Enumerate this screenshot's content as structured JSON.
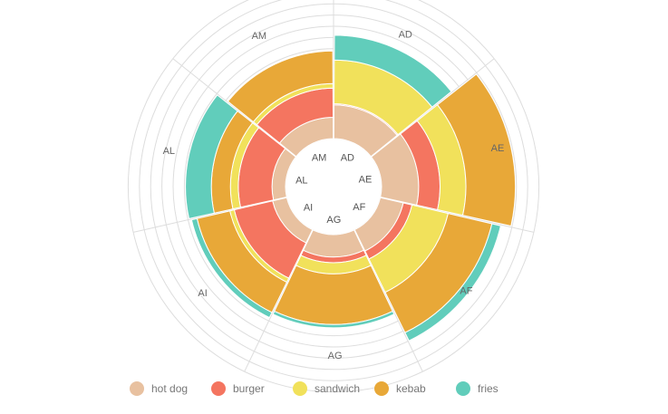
{
  "chart_data": {
    "type": "stacked-polar-bar",
    "categories": [
      "AD",
      "AE",
      "AF",
      "AG",
      "AI",
      "AL",
      "AM"
    ],
    "series": [
      {
        "name": "hot dog",
        "color": "#e8c1a0",
        "values": [
          30,
          33,
          21,
          20,
          13,
          12,
          19
        ]
      },
      {
        "name": "burger",
        "color": "#f47560",
        "values": [
          1,
          19,
          8,
          5,
          35,
          30,
          26
        ]
      },
      {
        "name": "sandwich",
        "color": "#f1e15b",
        "values": [
          39,
          23,
          33,
          10,
          4,
          7,
          4
        ]
      },
      {
        "name": "kebab",
        "color": "#e8a838",
        "values": [
          0,
          44,
          40,
          45,
          30,
          17,
          29
        ]
      },
      {
        "name": "fries",
        "color": "#61cdbb",
        "values": [
          22,
          0,
          8,
          3,
          5,
          23,
          0
        ]
      }
    ],
    "ring_ticks": [
      0,
      10,
      20,
      30,
      40,
      50,
      60,
      70,
      80,
      90,
      100,
      110,
      120,
      130,
      140
    ],
    "grid": true,
    "legend_position": "bottom"
  }
}
